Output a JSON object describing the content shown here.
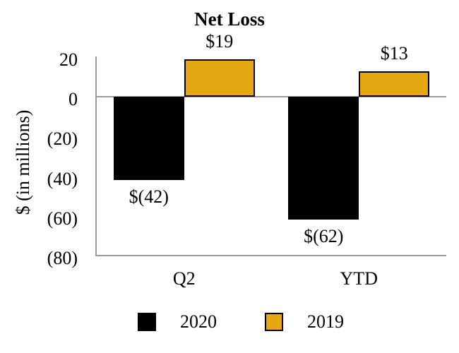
{
  "chart_data": {
    "type": "bar",
    "title": "Net Loss",
    "ylabel": "$ (in millions)",
    "categories": [
      "Q2",
      "YTD"
    ],
    "series": [
      {
        "name": "2020",
        "color": "#000000",
        "values": [
          -42,
          -62
        ],
        "data_labels": [
          "$(42)",
          "$(62)"
        ]
      },
      {
        "name": "2019",
        "color": "#E5A712",
        "values": [
          19,
          13
        ],
        "data_labels": [
          "$19",
          "$13"
        ]
      }
    ],
    "ylim": [
      -80,
      20
    ],
    "yticks": [
      {
        "value": 20,
        "label": "20"
      },
      {
        "value": 0,
        "label": "0"
      },
      {
        "value": -20,
        "label": "(20)"
      },
      {
        "value": -40,
        "label": "(40)"
      },
      {
        "value": -60,
        "label": "(60)"
      },
      {
        "value": -80,
        "label": "(80)"
      }
    ],
    "legend": {
      "position": "bottom",
      "entries": [
        "2020",
        "2019"
      ]
    },
    "grid": false,
    "axis_color": "#9a9a9a",
    "bar_border_color": "#000000"
  }
}
